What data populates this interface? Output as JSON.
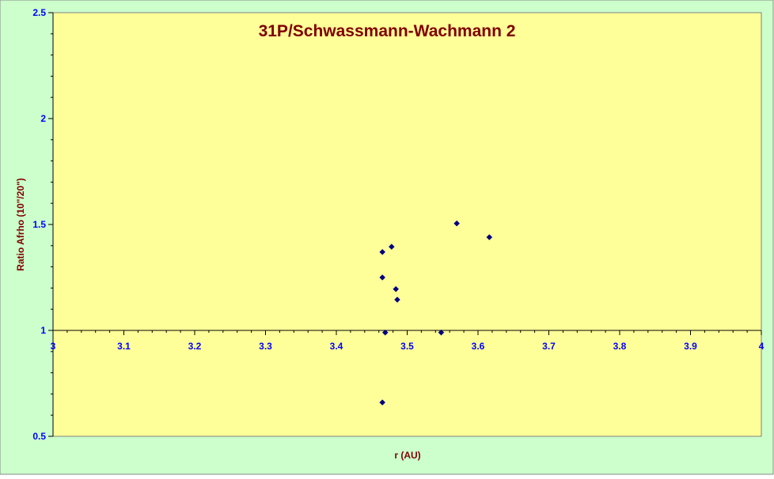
{
  "colors": {
    "chart_area": "#ccffcc",
    "plot_area": "#ffff99",
    "title": "#800000",
    "axis_title": "#800000",
    "tick_label": "#0000ff",
    "marker": "#000080",
    "axis_line": "#000000"
  },
  "chart_data": {
    "type": "scatter",
    "title": "31P/Schwassmann-Wachmann 2",
    "xlabel": "r (AU)",
    "ylabel": "Ratio Afrho (10\"/20\")",
    "xlim": [
      3,
      4
    ],
    "ylim": [
      0.5,
      2.5
    ],
    "x_axis_crosses_y": 1,
    "xticks": [
      "3",
      "3.1",
      "3.2",
      "3.3",
      "3.4",
      "3.5",
      "3.6",
      "3.7",
      "3.8",
      "3.9",
      "4"
    ],
    "yticks": [
      "0.5",
      "1",
      "1.5",
      "2",
      "2.5"
    ],
    "grid": false,
    "legend": "none",
    "marker": "diamond",
    "points": [
      {
        "x": 3.465,
        "y": 1.37
      },
      {
        "x": 3.465,
        "y": 1.25
      },
      {
        "x": 3.465,
        "y": 0.66
      },
      {
        "x": 3.469,
        "y": 0.99
      },
      {
        "x": 3.478,
        "y": 1.395
      },
      {
        "x": 3.484,
        "y": 1.195
      },
      {
        "x": 3.486,
        "y": 1.145
      },
      {
        "x": 3.548,
        "y": 0.99
      },
      {
        "x": 3.57,
        "y": 1.505
      },
      {
        "x": 3.616,
        "y": 1.44
      }
    ]
  }
}
